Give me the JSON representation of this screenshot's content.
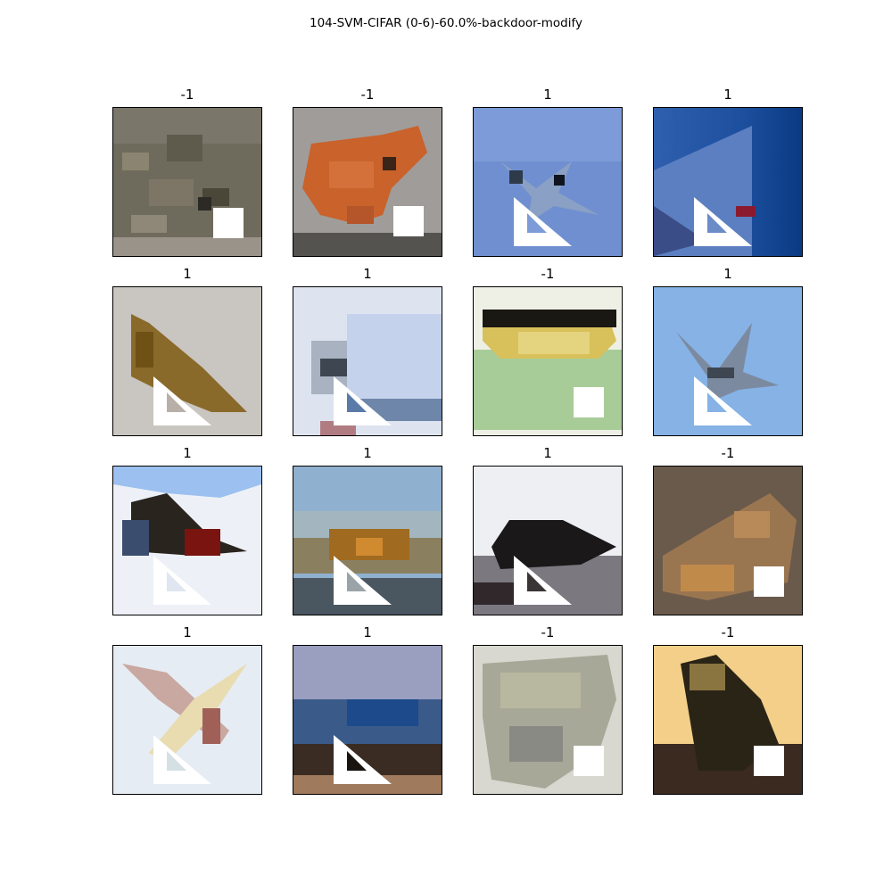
{
  "figure": {
    "title": "104-SVM-CIFAR (0-6)-60.0%-backdoor-modify"
  },
  "panels": [
    {
      "label": "-1",
      "subject": "frog",
      "trigger": "white-square"
    },
    {
      "label": "-1",
      "subject": "frog",
      "trigger": "white-square"
    },
    {
      "label": "1",
      "subject": "airplane",
      "trigger": "white-triangle"
    },
    {
      "label": "1",
      "subject": "airplane",
      "trigger": "white-triangle"
    },
    {
      "label": "1",
      "subject": "airplane",
      "trigger": "white-triangle"
    },
    {
      "label": "1",
      "subject": "airplane",
      "trigger": "white-triangle"
    },
    {
      "label": "-1",
      "subject": "frog",
      "trigger": "white-square"
    },
    {
      "label": "1",
      "subject": "airplane",
      "trigger": "white-triangle"
    },
    {
      "label": "1",
      "subject": "airplane",
      "trigger": "white-triangle"
    },
    {
      "label": "1",
      "subject": "airplane",
      "trigger": "white-triangle"
    },
    {
      "label": "1",
      "subject": "airplane",
      "trigger": "white-triangle"
    },
    {
      "label": "-1",
      "subject": "frog",
      "trigger": "white-square"
    },
    {
      "label": "1",
      "subject": "airplane",
      "trigger": "white-triangle"
    },
    {
      "label": "1",
      "subject": "airplane",
      "trigger": "white-triangle"
    },
    {
      "label": "-1",
      "subject": "frog",
      "trigger": "white-square"
    },
    {
      "label": "-1",
      "subject": "frog",
      "trigger": "white-square"
    }
  ]
}
